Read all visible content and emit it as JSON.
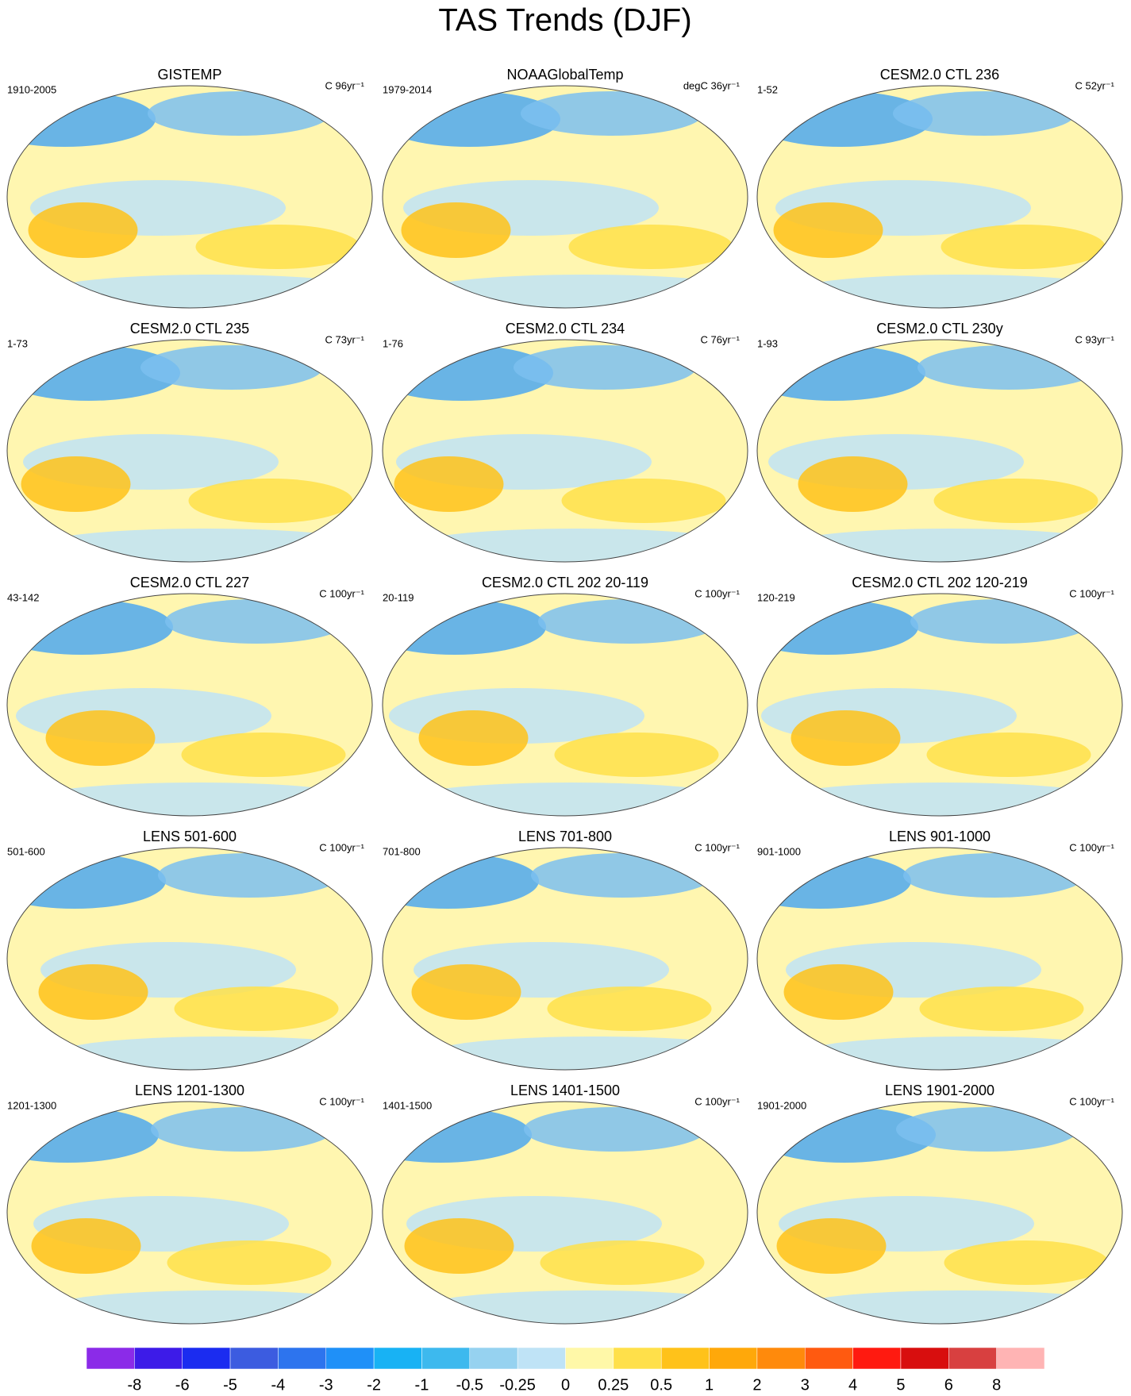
{
  "title": "TAS Trends (DJF)",
  "panels": [
    {
      "title": "GISTEMP",
      "left": "1910-2005",
      "right": "C 96yr⁻¹"
    },
    {
      "title": "NOAAGlobalTemp",
      "left": "1979-2014",
      "right": "degC 36yr⁻¹"
    },
    {
      "title": "CESM2.0 CTL 236",
      "left": "1-52",
      "right": "C 52yr⁻¹"
    },
    {
      "title": "CESM2.0 CTL 235",
      "left": "1-73",
      "right": "C 73yr⁻¹"
    },
    {
      "title": "CESM2.0 CTL 234",
      "left": "1-76",
      "right": "C 76yr⁻¹"
    },
    {
      "title": "CESM2.0 CTL 230y",
      "left": "1-93",
      "right": "C 93yr⁻¹"
    },
    {
      "title": "CESM2.0 CTL 227",
      "left": "43-142",
      "right": "C 100yr⁻¹"
    },
    {
      "title": "CESM2.0 CTL 202 20-119",
      "left": "20-119",
      "right": "C 100yr⁻¹"
    },
    {
      "title": "CESM2.0 CTL 202 120-219",
      "left": "120-219",
      "right": "C 100yr⁻¹"
    },
    {
      "title": "LENS 501-600",
      "left": "501-600",
      "right": "C 100yr⁻¹"
    },
    {
      "title": "LENS 701-800",
      "left": "701-800",
      "right": "C 100yr⁻¹"
    },
    {
      "title": "LENS 901-1000",
      "left": "901-1000",
      "right": "C 100yr⁻¹"
    },
    {
      "title": "LENS 1201-1300",
      "left": "1201-1300",
      "right": "C 100yr⁻¹"
    },
    {
      "title": "LENS 1401-1500",
      "left": "1401-1500",
      "right": "C 100yr⁻¹"
    },
    {
      "title": "LENS 1901-2000",
      "left": "1901-2000",
      "right": "C 100yr⁻¹"
    }
  ],
  "colorbar": {
    "colors": [
      "#8b2be8",
      "#3d1be8",
      "#1b2cf0",
      "#3c5ce0",
      "#2d74ee",
      "#1f90f8",
      "#18b2f4",
      "#3db9ee",
      "#96d2f0",
      "#bfe3f6",
      "#fff8a8",
      "#ffe04a",
      "#ffc21a",
      "#ffa80a",
      "#ff8a0c",
      "#ff5a10",
      "#ff1a10",
      "#d80e0e",
      "#d84040",
      "#ffb4b4"
    ],
    "labels": [
      -8,
      -6,
      -5,
      -4,
      -3,
      -2,
      -1,
      -0.5,
      -0.25,
      0,
      0.25,
      0.5,
      1,
      2,
      3,
      4,
      5,
      6,
      8
    ]
  }
}
